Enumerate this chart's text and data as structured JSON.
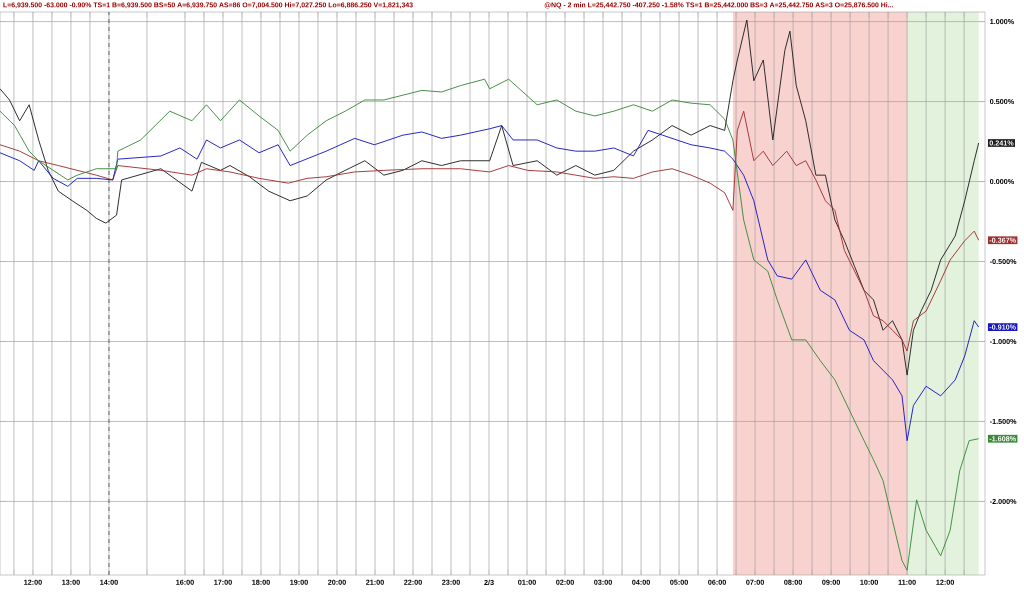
{
  "chart_data": {
    "type": "line",
    "annotations": [
      "L=6,939.500 -63.000 -0.90% TS=1 B=6,939.500 BS=50 A=6,939.750 AS=86 O=7,004.500 Hi=7,027.250 Lo=6,886.250 V=1,821,343",
      "@NQ - 2 min L=25,442.750 -407.250 -1.58% TS=1 B=25,442.000 BS=3 A=25,442.750 AS=3 O=25,876.500 Hi...",
      "0.241%",
      "-0.367%",
      "-0.910%",
      "-1.608%"
    ],
    "series": [
      {
        "color": "#202020",
        "x": [
          "--02-02T11:08",
          "--02-02T11:23",
          "--02-02T11:39",
          "--02-02T11:54",
          "--02-02T12:09",
          "--02-02T12:24",
          "--02-02T12:40",
          "--02-02T13:02",
          "--02-02T13:25",
          "--02-02T13:40",
          "--02-02T13:55",
          "--02-02T14:12",
          "--02-02T14:20",
          "--02-02T15:22",
          "--02-02T16:11",
          "--02-02T16:26",
          "--02-02T16:56",
          "--02-02T17:11",
          "--02-02T17:42",
          "--02-02T18:12",
          "--02-02T18:46",
          "--02-02T19:13",
          "--02-02T19:43",
          "--02-02T20:13",
          "--02-02T20:44",
          "--02-02T21:14",
          "--02-02T21:44",
          "--02-02T22:14",
          "--02-02T22:45",
          "--02-02T23:15",
          "--02-03T00:01",
          "--02-03T00:20",
          "--02-03T00:38",
          "--02-03T01:16",
          "--02-03T01:47",
          "--02-03T02:17",
          "--02-03T02:47",
          "--02-03T03:17",
          "--02-03T03:48",
          "--02-03T04:18",
          "--02-03T04:49",
          "--02-03T05:19",
          "--02-03T05:49",
          "--02-03T06:12",
          "--02-03T06:25",
          "--02-03T06:32",
          "--02-03T06:47",
          "--02-03T06:58",
          "--02-03T07:13",
          "--02-03T07:28",
          "--02-03T07:47",
          "--02-03T07:55",
          "--02-03T08:05",
          "--02-03T08:20",
          "--02-03T08:36",
          "--02-03T08:51",
          "--02-03T09:06",
          "--02-03T09:21",
          "--02-03T09:37",
          "--02-03T09:52",
          "--02-03T10:07",
          "--02-03T10:22",
          "--02-03T10:37",
          "--02-03T10:52",
          "--02-03T11:00",
          "--02-03T11:10",
          "--02-03T11:22",
          "--02-03T11:38",
          "--02-03T11:53",
          "--02-03T12:16",
          "--02-03T12:31",
          "--02-03T12:46",
          "--02-03T12:53"
        ],
        "values": [
          0.58,
          0.51,
          0.38,
          0.48,
          0.26,
          0.07,
          -0.06,
          -0.12,
          -0.18,
          -0.23,
          -0.26,
          -0.21,
          0.01,
          0.08,
          -0.06,
          0.12,
          0.07,
          0.1,
          0.03,
          -0.06,
          -0.12,
          -0.09,
          0.01,
          0.07,
          0.13,
          0.04,
          0.07,
          0.13,
          0.1,
          0.13,
          0.13,
          0.35,
          0.1,
          0.13,
          0.04,
          0.1,
          0.04,
          0.07,
          0.19,
          0.26,
          0.35,
          0.29,
          0.35,
          0.32,
          0.63,
          0.76,
          1.01,
          0.63,
          0.76,
          0.26,
          0.82,
          0.94,
          0.6,
          0.38,
          0.04,
          0.04,
          -0.24,
          -0.37,
          -0.53,
          -0.68,
          -0.74,
          -0.93,
          -0.87,
          -0.99,
          -1.21,
          -0.93,
          -0.81,
          -0.68,
          -0.49,
          -0.34,
          -0.12,
          0.13,
          0.241
        ]
      },
      {
        "color": "#a03030",
        "x": [
          "--02-02T11:08",
          "--02-02T11:39",
          "--02-02T12:09",
          "--02-02T12:40",
          "--02-02T13:10",
          "--02-02T13:40",
          "--02-02T14:06",
          "--02-02T14:14",
          "--02-02T15:22",
          "--02-02T16:11",
          "--02-02T16:34",
          "--02-02T17:11",
          "--02-02T17:57",
          "--02-02T18:43",
          "--02-02T19:13",
          "--02-02T19:43",
          "--02-02T20:28",
          "--02-02T21:14",
          "--02-02T22:14",
          "--02-02T23:15",
          "--02-03T00:01",
          "--02-03T00:31",
          "--02-03T01:01",
          "--02-03T01:47",
          "--02-03T02:17",
          "--02-03T02:47",
          "--02-03T03:17",
          "--02-03T03:48",
          "--02-03T04:18",
          "--02-03T04:49",
          "--02-03T05:19",
          "--02-03T05:49",
          "--02-03T06:12",
          "--02-03T06:25",
          "--02-03T06:32",
          "--02-03T06:42",
          "--02-03T06:58",
          "--02-03T07:13",
          "--02-03T07:28",
          "--02-03T07:50",
          "--02-03T08:05",
          "--02-03T08:20",
          "--02-03T08:36",
          "--02-03T08:51",
          "--02-03T09:06",
          "--02-03T09:21",
          "--02-03T09:37",
          "--02-03T09:52",
          "--02-03T10:07",
          "--02-03T10:22",
          "--02-03T10:37",
          "--02-03T10:52",
          "--02-03T11:00",
          "--02-03T11:10",
          "--02-03T11:30",
          "--02-03T11:53",
          "--02-03T12:08",
          "--02-03T12:31",
          "--02-03T12:46",
          "--02-03T12:53"
        ],
        "values": [
          0.23,
          0.19,
          0.13,
          0.1,
          0.07,
          0.04,
          0.01,
          0.1,
          0.07,
          0.04,
          0.08,
          0.06,
          0.02,
          -0.01,
          0.02,
          0.03,
          0.06,
          0.07,
          0.08,
          0.08,
          0.06,
          0.1,
          0.07,
          0.06,
          0.04,
          0.02,
          0.03,
          0.02,
          0.06,
          0.08,
          0.04,
          -0.01,
          -0.07,
          -0.18,
          0.32,
          0.44,
          0.13,
          0.19,
          0.1,
          0.19,
          0.1,
          0.13,
          0.01,
          -0.12,
          -0.18,
          -0.43,
          -0.56,
          -0.68,
          -0.84,
          -0.87,
          -0.93,
          -0.99,
          -1.06,
          -0.87,
          -0.81,
          -0.62,
          -0.49,
          -0.37,
          -0.31,
          -0.367
        ]
      },
      {
        "color": "#1818c0",
        "x": [
          "--02-02T11:08",
          "--02-02T11:39",
          "--02-02T12:02",
          "--02-02T12:09",
          "--02-02T12:32",
          "--02-02T12:55",
          "--02-02T13:10",
          "--02-02T13:40",
          "--02-02T14:06",
          "--02-02T14:14",
          "--02-02T15:22",
          "--02-02T15:52",
          "--02-02T16:19",
          "--02-02T16:34",
          "--02-02T16:56",
          "--02-02T17:26",
          "--02-02T17:57",
          "--02-02T18:27",
          "--02-02T18:46",
          "--02-02T19:05",
          "--02-02T19:43",
          "--02-02T20:28",
          "--02-02T20:59",
          "--02-02T21:44",
          "--02-02T22:14",
          "--02-02T22:45",
          "--02-02T23:15",
          "--02-03T00:01",
          "--02-03T00:20",
          "--02-03T00:38",
          "--02-03T01:16",
          "--02-03T01:47",
          "--02-03T02:17",
          "--02-03T02:47",
          "--02-03T03:17",
          "--02-03T03:48",
          "--02-03T04:11",
          "--02-03T04:34",
          "--02-03T05:19",
          "--02-03T05:49",
          "--02-03T06:12",
          "--02-03T06:25",
          "--02-03T06:42",
          "--02-03T06:58",
          "--02-03T07:20",
          "--02-03T07:35",
          "--02-03T07:58",
          "--02-03T08:20",
          "--02-03T08:43",
          "--02-03T09:06",
          "--02-03T09:29",
          "--02-03T09:52",
          "--02-03T10:07",
          "--02-03T10:22",
          "--02-03T10:37",
          "--02-03T10:52",
          "--02-03T11:00",
          "--02-03T11:10",
          "--02-03T11:30",
          "--02-03T11:53",
          "--02-03T12:16",
          "--02-03T12:31",
          "--02-03T12:46",
          "--02-03T12:53"
        ],
        "values": [
          0.18,
          0.13,
          0.07,
          0.13,
          0.02,
          -0.03,
          0.02,
          0.02,
          0.01,
          0.14,
          0.16,
          0.21,
          0.14,
          0.26,
          0.21,
          0.26,
          0.18,
          0.23,
          0.1,
          0.13,
          0.19,
          0.27,
          0.23,
          0.29,
          0.31,
          0.27,
          0.29,
          0.33,
          0.35,
          0.26,
          0.26,
          0.21,
          0.19,
          0.19,
          0.21,
          0.16,
          0.32,
          0.29,
          0.23,
          0.21,
          0.19,
          0.14,
          0.04,
          -0.12,
          -0.49,
          -0.59,
          -0.61,
          -0.49,
          -0.68,
          -0.74,
          -0.93,
          -0.99,
          -1.12,
          -1.18,
          -1.24,
          -1.34,
          -1.62,
          -1.4,
          -1.28,
          -1.34,
          -1.24,
          -1.09,
          -0.87,
          -0.91
        ]
      },
      {
        "color": "#3a8a3a",
        "x": [
          "--02-02T11:08",
          "--02-02T11:31",
          "--02-02T11:54",
          "--02-02T12:09",
          "--02-02T12:32",
          "--02-02T12:55",
          "--02-02T13:10",
          "--02-02T13:40",
          "--02-02T14:12",
          "--02-02T14:14",
          "--02-02T14:50",
          "--02-02T15:36",
          "--02-02T16:11",
          "--02-02T16:34",
          "--02-02T16:56",
          "--02-02T17:26",
          "--02-02T17:57",
          "--02-02T18:27",
          "--02-02T18:46",
          "--02-02T19:13",
          "--02-02T19:43",
          "--02-02T20:13",
          "--02-02T20:44",
          "--02-02T21:14",
          "--02-02T21:44",
          "--02-02T22:14",
          "--02-02T22:45",
          "--02-02T23:15",
          "--02-02T23:53",
          "--02-03T00:01",
          "--02-03T00:31",
          "--02-03T01:16",
          "--02-03T01:47",
          "--02-03T02:17",
          "--02-03T02:47",
          "--02-03T03:17",
          "--02-03T03:48",
          "--02-03T04:18",
          "--02-03T04:49",
          "--02-03T05:19",
          "--02-03T05:49",
          "--02-03T06:12",
          "--02-03T06:25",
          "--02-03T06:42",
          "--02-03T06:58",
          "--02-03T07:20",
          "--02-03T07:35",
          "--02-03T07:58",
          "--02-03T08:20",
          "--02-03T08:43",
          "--02-03T09:06",
          "--02-03T09:29",
          "--02-03T09:52",
          "--02-03T10:07",
          "--02-03T10:22",
          "--02-03T10:37",
          "--02-03T10:52",
          "--02-03T11:00",
          "--02-03T11:15",
          "--02-03T11:30",
          "--02-03T11:53",
          "--02-03T12:08",
          "--02-03T12:23",
          "--02-03T12:38",
          "--02-03T12:53"
        ],
        "values": [
          0.44,
          0.35,
          0.19,
          0.13,
          0.07,
          0.01,
          0.04,
          0.08,
          0.08,
          0.19,
          0.26,
          0.44,
          0.38,
          0.48,
          0.38,
          0.51,
          0.41,
          0.32,
          0.19,
          0.29,
          0.38,
          0.44,
          0.51,
          0.51,
          0.54,
          0.57,
          0.56,
          0.6,
          0.64,
          0.58,
          0.64,
          0.48,
          0.51,
          0.44,
          0.41,
          0.44,
          0.48,
          0.44,
          0.51,
          0.49,
          0.48,
          0.39,
          0.26,
          -0.24,
          -0.49,
          -0.56,
          -0.74,
          -0.99,
          -0.99,
          -1.12,
          -1.24,
          -1.43,
          -1.62,
          -1.74,
          -1.87,
          -2.12,
          -2.37,
          -2.43,
          -1.99,
          -2.18,
          -2.34,
          -2.18,
          -1.81,
          -1.62,
          -1.608
        ]
      }
    ],
    "xlim": [
      "--02-02T11:08",
      "--02-03T13:03"
    ],
    "xticks": [
      {
        "value": "--02-02T11:30",
        "label": null
      },
      {
        "value": "--02-02T12:00",
        "label": "12:00"
      },
      {
        "value": "--02-02T12:30",
        "label": null
      },
      {
        "value": "--02-02T13:00",
        "label": "13:00"
      },
      {
        "value": "--02-02T13:30",
        "label": null
      },
      {
        "value": "--02-02T14:00",
        "label": "14:00"
      },
      {
        "value": "--02-02T15:00",
        "label": null
      },
      {
        "value": "--02-02T16:00",
        "label": "16:00"
      },
      {
        "value": "--02-02T16:30",
        "label": null
      },
      {
        "value": "--02-02T17:00",
        "label": "17:00"
      },
      {
        "value": "--02-02T17:30",
        "label": null
      },
      {
        "value": "--02-02T18:00",
        "label": "18:00"
      },
      {
        "value": "--02-02T18:30",
        "label": null
      },
      {
        "value": "--02-02T19:00",
        "label": "19:00"
      },
      {
        "value": "--02-02T19:30",
        "label": null
      },
      {
        "value": "--02-02T20:00",
        "label": "20:00"
      },
      {
        "value": "--02-02T20:30",
        "label": null
      },
      {
        "value": "--02-02T21:00",
        "label": "21:00"
      },
      {
        "value": "--02-02T21:30",
        "label": null
      },
      {
        "value": "--02-02T22:00",
        "label": "22:00"
      },
      {
        "value": "--02-02T22:30",
        "label": null
      },
      {
        "value": "--02-02T23:00",
        "label": "23:00"
      },
      {
        "value": "--02-02T23:30",
        "label": null
      },
      {
        "value": "--02-03T00:00",
        "label": "2/3"
      },
      {
        "value": "--02-03T00:30",
        "label": null
      },
      {
        "value": "--02-03T01:00",
        "label": "01:00"
      },
      {
        "value": "--02-03T01:30",
        "label": null
      },
      {
        "value": "--02-03T02:00",
        "label": "02:00"
      },
      {
        "value": "--02-03T02:30",
        "label": null
      },
      {
        "value": "--02-03T03:00",
        "label": "03:00"
      },
      {
        "value": "--02-03T03:30",
        "label": null
      },
      {
        "value": "--02-03T04:00",
        "label": "04:00"
      },
      {
        "value": "--02-03T04:30",
        "label": null
      },
      {
        "value": "--02-03T05:00",
        "label": "05:00"
      },
      {
        "value": "--02-03T05:30",
        "label": null
      },
      {
        "value": "--02-03T06:00",
        "label": "06:00"
      },
      {
        "value": "--02-03T06:30",
        "label": null
      },
      {
        "value": "--02-03T07:00",
        "label": "07:00"
      },
      {
        "value": "--02-03T07:30",
        "label": null
      },
      {
        "value": "--02-03T08:00",
        "label": "08:00"
      },
      {
        "value": "--02-03T08:30",
        "label": null
      },
      {
        "value": "--02-03T09:00",
        "label": "09:00"
      },
      {
        "value": "--02-03T09:30",
        "label": null
      },
      {
        "value": "--02-03T10:00",
        "label": "10:00"
      },
      {
        "value": "--02-03T10:30",
        "label": null
      },
      {
        "value": "--02-03T11:00",
        "label": "11:00"
      },
      {
        "value": "--02-03T11:30",
        "label": null
      },
      {
        "value": "--02-03T12:00",
        "label": "12:00"
      },
      {
        "value": "--02-03T12:30",
        "label": null
      }
    ],
    "ylim": [
      -2.46,
      1.06
    ],
    "yticks": [
      {
        "value": -2,
        "label": "-2.000%"
      },
      {
        "value": -1.5,
        "label": "-1.500%"
      },
      {
        "value": -1,
        "label": "-1.000%"
      },
      {
        "value": -0.5,
        "label": "-0.500%"
      },
      {
        "value": 0,
        "label": "0.000%"
      },
      {
        "value": 0.5,
        "label": "0.500%"
      },
      {
        "value": 1,
        "label": "1.000%"
      }
    ],
    "grid": true,
    "ref_lines": [
      {
        "axis": "x",
        "value": "--02-02T14:00",
        "line_style": "dashed"
      }
    ],
    "bands": [
      {
        "axis": "x",
        "from": "--02-03T06:25",
        "to": "--02-03T11:00",
        "color": "#f8d2cf"
      },
      {
        "axis": "x",
        "from": "--02-03T11:00",
        "to": "--02-03T12:53",
        "color": "#e2f2dc"
      }
    ]
  }
}
